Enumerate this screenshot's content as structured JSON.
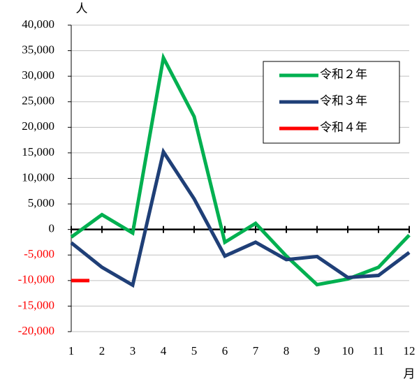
{
  "chart_data": {
    "type": "line",
    "y_unit": "人",
    "x_unit": "月",
    "categories": [
      "1",
      "2",
      "3",
      "4",
      "5",
      "6",
      "7",
      "8",
      "9",
      "10",
      "11",
      "12"
    ],
    "series": [
      {
        "name": "令和２年",
        "color": "#00b050",
        "values": [
          -1500,
          2900,
          -700,
          33600,
          22100,
          -2500,
          1200,
          -5200,
          -10800,
          -9700,
          -7400,
          -1100
        ]
      },
      {
        "name": "令和３年",
        "color": "#1f3f77",
        "values": [
          -2600,
          -7400,
          -10900,
          15200,
          6000,
          -5200,
          -2500,
          -5900,
          -5300,
          -9400,
          -9000,
          -4500
        ]
      },
      {
        "name": "令和４年",
        "color": "#ff0000",
        "values": [
          -10000,
          null,
          null,
          null,
          null,
          null,
          null,
          null,
          null,
          null,
          null,
          null
        ]
      }
    ],
    "ylim": [
      -20000,
      40000
    ],
    "yticks": [
      {
        "value": -20000,
        "label": "-20,000"
      },
      {
        "value": -15000,
        "label": "-15,000"
      },
      {
        "value": -10000,
        "label": "-10,000"
      },
      {
        "value": -5000,
        "label": "-5,000"
      },
      0,
      {
        "value": 5000,
        "label": "5,000"
      },
      {
        "value": 10000,
        "label": "10,000"
      },
      {
        "value": 15000,
        "label": "15,000"
      },
      {
        "value": 20000,
        "label": "20,000"
      },
      {
        "value": 25000,
        "label": "25,000"
      },
      {
        "value": 30000,
        "label": "30,000"
      },
      {
        "value": 35000,
        "label": "35,000"
      },
      {
        "value": 40000,
        "label": "40,000"
      }
    ],
    "grid": true,
    "negative_tick_color": "#ff0000",
    "legend": "upper right"
  }
}
